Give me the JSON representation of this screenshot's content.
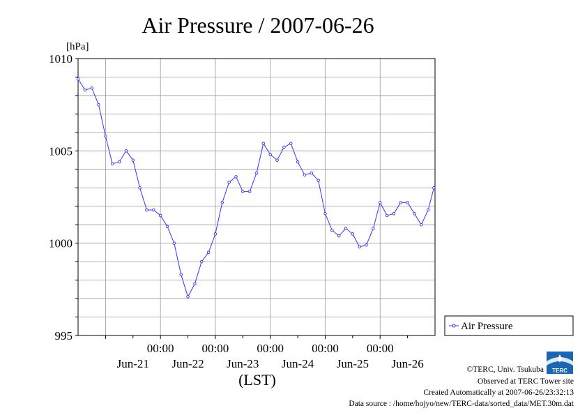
{
  "chart_data": {
    "type": "line",
    "title": "Air Pressure / 2007-06-26",
    "yunit": "[hPa]",
    "xlabel": "(LST)",
    "ylim": [
      995,
      1010
    ],
    "y_ticks": [
      "1010",
      "1005",
      "1000",
      "995"
    ],
    "x_time_ticks": [
      "00:00",
      "00:00",
      "00:00",
      "00:00",
      "00:00"
    ],
    "x_date_ticks": [
      "Jun-21",
      "Jun-22",
      "Jun-23",
      "Jun-24",
      "Jun-25",
      "Jun-26"
    ],
    "grid": true,
    "legend_position": "right",
    "x_start": "2007-06-20 12:00",
    "x_end": "2007-06-27 00:00",
    "color": "#3333ff",
    "series": [
      {
        "name": "Air Pressure",
        "x": [
          "2007-06-20 12:00",
          "2007-06-20 15:00",
          "2007-06-20 18:00",
          "2007-06-20 21:00",
          "2007-06-21 00:00",
          "2007-06-21 03:00",
          "2007-06-21 06:00",
          "2007-06-21 09:00",
          "2007-06-21 12:00",
          "2007-06-21 15:00",
          "2007-06-21 18:00",
          "2007-06-21 21:00",
          "2007-06-22 00:00",
          "2007-06-22 03:00",
          "2007-06-22 06:00",
          "2007-06-22 09:00",
          "2007-06-22 12:00",
          "2007-06-22 15:00",
          "2007-06-22 18:00",
          "2007-06-22 21:00",
          "2007-06-23 00:00",
          "2007-06-23 03:00",
          "2007-06-23 06:00",
          "2007-06-23 09:00",
          "2007-06-23 12:00",
          "2007-06-23 15:00",
          "2007-06-23 18:00",
          "2007-06-23 21:00",
          "2007-06-24 00:00",
          "2007-06-24 03:00",
          "2007-06-24 06:00",
          "2007-06-24 09:00",
          "2007-06-24 12:00",
          "2007-06-24 15:00",
          "2007-06-24 18:00",
          "2007-06-24 21:00",
          "2007-06-25 00:00",
          "2007-06-25 03:00",
          "2007-06-25 06:00",
          "2007-06-25 09:00",
          "2007-06-25 12:00",
          "2007-06-25 15:00",
          "2007-06-25 18:00",
          "2007-06-25 21:00",
          "2007-06-26 00:00",
          "2007-06-26 03:00",
          "2007-06-26 06:00",
          "2007-06-26 09:00",
          "2007-06-26 12:00",
          "2007-06-26 15:00",
          "2007-06-26 18:00",
          "2007-06-26 21:00",
          "2007-06-26 23:30"
        ],
        "values": [
          1008.9,
          1008.3,
          1008.4,
          1007.5,
          1005.8,
          1004.3,
          1004.4,
          1005.0,
          1004.5,
          1003.0,
          1001.8,
          1001.8,
          1001.5,
          1000.9,
          1000.0,
          998.3,
          997.1,
          997.8,
          999.0,
          999.5,
          1000.5,
          1002.2,
          1003.3,
          1003.6,
          1002.8,
          1002.8,
          1003.8,
          1005.4,
          1004.8,
          1004.5,
          1005.2,
          1005.4,
          1004.4,
          1003.7,
          1003.8,
          1003.4,
          1001.6,
          1000.7,
          1000.4,
          1000.8,
          1000.5,
          999.8,
          999.9,
          1000.8,
          1002.2,
          1001.5,
          1001.6,
          1002.2,
          1002.2,
          1001.6,
          1001.0,
          1001.8,
          1003.0
        ]
      }
    ]
  },
  "footer": {
    "copyright": "©TERC, Univ. Tsukuba",
    "observed": "Observed at TERC Tower site",
    "created": "Created Automatically at 2007-06-26/23:32:13",
    "source": "Data source : /home/hojyo/new/TERC-data/sorted_data/MET.30m.dat"
  },
  "logo_text": "TERC"
}
